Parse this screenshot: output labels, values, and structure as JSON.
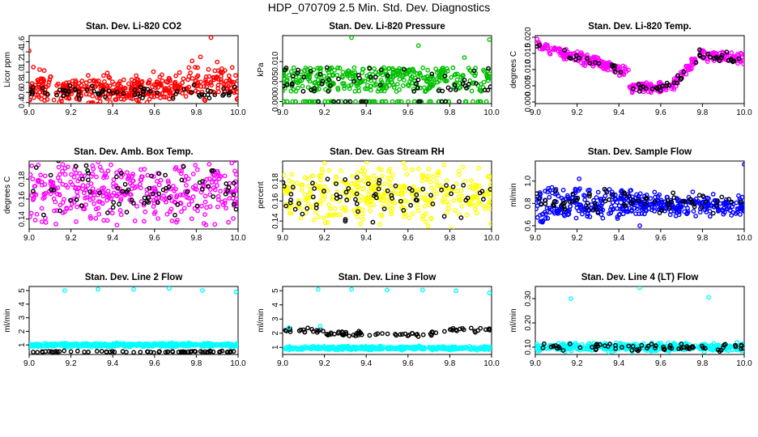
{
  "title": "HDP_070709  2.5 Min. Std. Dev. Diagnostics",
  "chart_data": [
    {
      "type": "scatter",
      "title": "Stan. Dev. Li-820 CO2",
      "ylabel": "Licor ppm",
      "xlim": [
        9.0,
        10.0
      ],
      "ylim": [
        0.38,
        1.72
      ],
      "xticks": [
        "9.0",
        "9.2",
        "9.4",
        "9.6",
        "9.8",
        "10.0"
      ],
      "yticks": [
        "0.4",
        "0.6",
        "0.8",
        "1.0",
        "1.2",
        "1.4",
        "1.6"
      ],
      "series": [
        {
          "color": "#ff0000",
          "n": 420,
          "seed": 11,
          "model": "co2",
          "base": 0.66,
          "noise": 0.13
        },
        {
          "color": "#000000",
          "n": 70,
          "seed": 12,
          "model": "flat",
          "base": 0.6,
          "noise": 0.06
        }
      ],
      "outliers": [
        [
          9.0,
          1.42
        ],
        [
          9.02,
          1.1
        ],
        [
          9.05,
          1.05
        ],
        [
          9.87,
          1.68
        ],
        [
          9.82,
          1.3
        ],
        [
          9.78,
          1.22
        ],
        [
          9.9,
          1.2
        ],
        [
          9.34,
          0.42
        ]
      ]
    },
    {
      "type": "scatter",
      "title": "Stan. Dev. Li-820 Pressure",
      "ylabel": "kPa",
      "xlim": [
        9.0,
        10.0
      ],
      "ylim": [
        -0.0005,
        0.0165
      ],
      "xticks": [
        "9.0",
        "9.2",
        "9.4",
        "9.6",
        "9.8",
        "10.0"
      ],
      "yticks": [
        "0.000",
        "0.005",
        "0.010"
      ],
      "ytick_vals": [
        0.0,
        0.005,
        0.01
      ],
      "series": [
        {
          "color": "#00c000",
          "n": 430,
          "seed": 21,
          "model": "press",
          "base": 0.005,
          "noise": 0.003
        },
        {
          "color": "#000000",
          "n": 70,
          "seed": 22,
          "model": "press",
          "base": 0.005,
          "noise": 0.003
        }
      ],
      "outliers": [
        [
          9.33,
          0.016
        ],
        [
          9.65,
          0.014
        ],
        [
          9.99,
          0.0155
        ],
        [
          9.87,
          0.011
        ]
      ]
    },
    {
      "type": "scatter",
      "title": "Stan. Dev. Li-820 Temp.",
      "ylabel": "degrees C",
      "xlim": [
        9.0,
        10.0
      ],
      "ylim": [
        -0.0005,
        0.0205
      ],
      "xticks": [
        "9.0",
        "9.2",
        "9.4",
        "9.6",
        "9.8",
        "10.0"
      ],
      "yticks": [
        "0.000",
        "0.005",
        "0.010",
        "0.015",
        "0.020"
      ],
      "ytick_vals": [
        0.0,
        0.005,
        0.01,
        0.015,
        0.02
      ],
      "series": [
        {
          "color": "#ff00ff",
          "n": 380,
          "seed": 31,
          "model": "temp",
          "base": 0,
          "noise": 0.0008
        },
        {
          "color": "#000000",
          "n": 60,
          "seed": 32,
          "model": "temp",
          "base": 0,
          "noise": 0.0008
        }
      ],
      "outliers": []
    },
    {
      "type": "scatter",
      "title": "Stan. Dev. Amb. Box Temp.",
      "ylabel": "degrees C",
      "xlim": [
        9.0,
        10.0
      ],
      "ylim": [
        0.13,
        0.198
      ],
      "xticks": [
        "9.0",
        "9.2",
        "9.4",
        "9.6",
        "9.8",
        "10.0"
      ],
      "yticks": [
        "0.14",
        "0.16",
        "0.18"
      ],
      "ytick_vals": [
        0.14,
        0.16,
        0.18
      ],
      "series": [
        {
          "color": "#ff00ff",
          "n": 380,
          "seed": 41,
          "model": "flat",
          "base": 0.167,
          "noise": 0.014
        },
        {
          "color": "#000000",
          "n": 70,
          "seed": 42,
          "model": "flat",
          "base": 0.168,
          "noise": 0.012
        }
      ],
      "outliers": [
        [
          9.33,
          0.197
        ],
        [
          9.97,
          0.196
        ],
        [
          9.42,
          0.134
        ]
      ]
    },
    {
      "type": "scatter",
      "title": "Stan. Dev. Gas Stream RH",
      "ylabel": "percent",
      "xlim": [
        9.0,
        10.0
      ],
      "ylim": [
        0.132,
        0.2
      ],
      "xticks": [
        "9.0",
        "9.2",
        "9.4",
        "9.6",
        "9.8",
        "10.0"
      ],
      "yticks": [
        "0.14",
        "0.16",
        "0.18"
      ],
      "ytick_vals": [
        0.14,
        0.16,
        0.18
      ],
      "series": [
        {
          "color": "#ffff00",
          "n": 380,
          "seed": 51,
          "model": "flat",
          "base": 0.166,
          "noise": 0.013
        },
        {
          "color": "#000000",
          "n": 70,
          "seed": 52,
          "model": "flat",
          "base": 0.166,
          "noise": 0.011
        }
      ],
      "outliers": [
        [
          9.2,
          0.198
        ],
        [
          9.58,
          0.198
        ]
      ]
    },
    {
      "type": "scatter",
      "title": "Stan. Dev. Sample Flow",
      "ylabel": "ml/min",
      "xlim": [
        9.0,
        10.0
      ],
      "ylim": [
        0.57,
        1.18
      ],
      "xticks": [
        "9.0",
        "9.2",
        "9.4",
        "9.6",
        "9.8",
        "10.0"
      ],
      "yticks": [
        "0.6",
        "0.8",
        "1.0"
      ],
      "ytick_vals": [
        0.6,
        0.8,
        1.0
      ],
      "series": [
        {
          "color": "#0000ff",
          "n": 420,
          "seed": 61,
          "model": "flow",
          "base": 0.8,
          "noise": 0.04
        },
        {
          "color": "#000000",
          "n": 70,
          "seed": 62,
          "model": "flat",
          "base": 0.82,
          "noise": 0.05
        }
      ],
      "outliers": [
        [
          10.0,
          1.15
        ],
        [
          9.21,
          1.02
        ],
        [
          9.5,
          0.6
        ]
      ]
    },
    {
      "type": "scatter",
      "title": "Stan. Dev. Line 2 Flow",
      "ylabel": "ml/min",
      "xlim": [
        9.0,
        10.0
      ],
      "ylim": [
        0.3,
        5.3
      ],
      "xticks": [
        "9.0",
        "9.2",
        "9.4",
        "9.6",
        "9.8",
        "10.0"
      ],
      "yticks": [
        "1",
        "2",
        "3",
        "4",
        "5"
      ],
      "ytick_vals": [
        1,
        2,
        3,
        4,
        5
      ],
      "series": [
        {
          "color": "#00ffff",
          "n": 420,
          "seed": 71,
          "model": "flat",
          "base": 1.0,
          "noise": 0.06
        },
        {
          "color": "#000000",
          "n": 70,
          "seed": 72,
          "model": "flat",
          "base": 0.5,
          "noise": 0.03
        }
      ],
      "outliers": [
        [
          9.17,
          5.0
        ],
        [
          9.33,
          5.1
        ],
        [
          9.5,
          5.1
        ],
        [
          9.67,
          5.15
        ],
        [
          9.83,
          5.0
        ],
        [
          9.99,
          4.9
        ]
      ]
    },
    {
      "type": "scatter",
      "title": "Stan. Dev. Line 3 Flow",
      "ylabel": "ml/min",
      "xlim": [
        9.0,
        10.0
      ],
      "ylim": [
        0.5,
        5.3
      ],
      "xticks": [
        "9.0",
        "9.2",
        "9.4",
        "9.6",
        "9.8",
        "10.0"
      ],
      "yticks": [
        "1",
        "2",
        "3",
        "4",
        "5"
      ],
      "ytick_vals": [
        1,
        2,
        3,
        4,
        5
      ],
      "series": [
        {
          "color": "#00ffff",
          "n": 420,
          "seed": 81,
          "model": "flat",
          "base": 0.95,
          "noise": 0.06
        },
        {
          "color": "#000000",
          "n": 90,
          "seed": 82,
          "model": "line3",
          "base": 2.15,
          "noise": 0.08
        }
      ],
      "outliers": [
        [
          9.17,
          5.1
        ],
        [
          9.33,
          5.1
        ],
        [
          9.5,
          5.05
        ],
        [
          9.67,
          5.05
        ],
        [
          9.83,
          5.0
        ],
        [
          9.99,
          4.85
        ],
        [
          9.03,
          2.4
        ],
        [
          9.18,
          2.5
        ],
        [
          9.78,
          1.0
        ]
      ]
    },
    {
      "type": "scatter",
      "title": "Stan. Dev. Line 4 (LT) Flow",
      "ylabel": "ml/min",
      "xlim": [
        9.0,
        10.0
      ],
      "ylim": [
        0.07,
        0.35
      ],
      "xticks": [
        "9.0",
        "9.2",
        "9.4",
        "9.6",
        "9.8",
        "10.0"
      ],
      "yticks": [
        "0.10",
        "0.20",
        "0.30"
      ],
      "ytick_vals": [
        0.1,
        0.2,
        0.3
      ],
      "series": [
        {
          "color": "#00ffff",
          "n": 420,
          "seed": 91,
          "model": "flat",
          "base": 0.1,
          "noise": 0.008
        },
        {
          "color": "#000000",
          "n": 70,
          "seed": 92,
          "model": "flat",
          "base": 0.1,
          "noise": 0.008
        }
      ],
      "outliers": [
        [
          9.17,
          0.3
        ],
        [
          9.5,
          0.345
        ],
        [
          9.83,
          0.305
        ]
      ]
    }
  ]
}
